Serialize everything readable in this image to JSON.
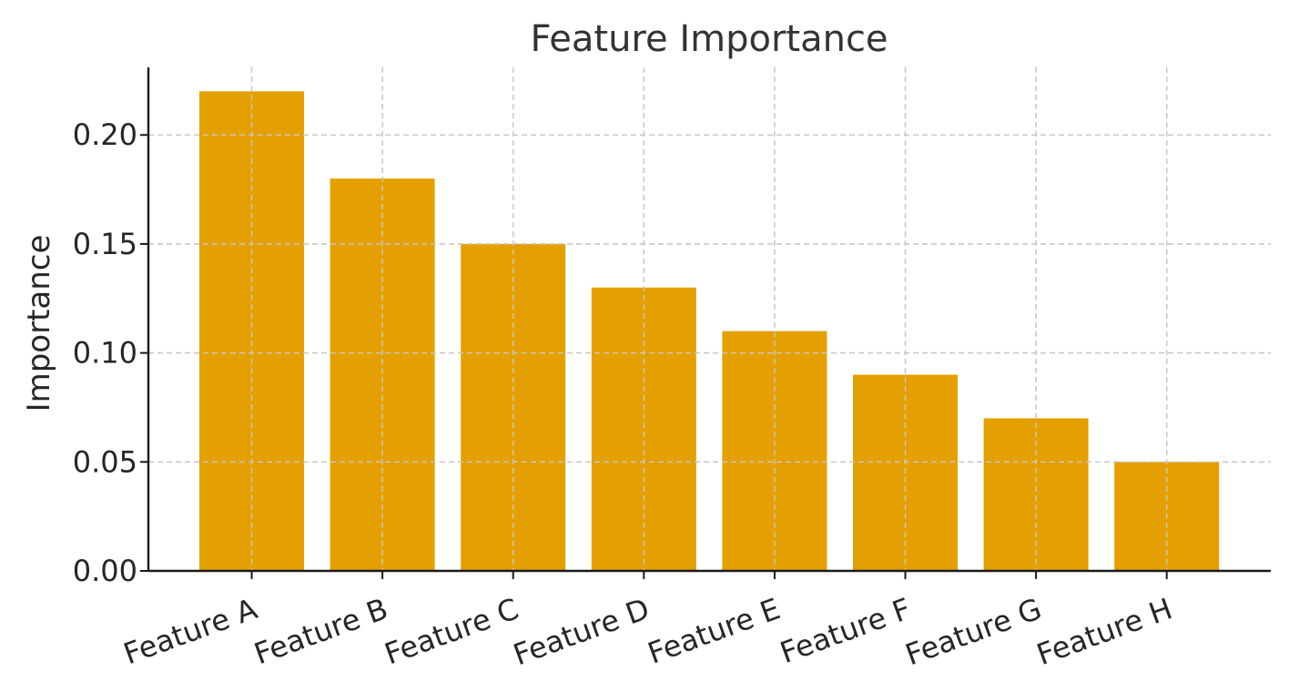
{
  "chart_data": {
    "type": "bar",
    "title": "Feature Importance",
    "xlabel": "",
    "ylabel": "Importance",
    "categories": [
      "Feature A",
      "Feature B",
      "Feature C",
      "Feature D",
      "Feature E",
      "Feature F",
      "Feature G",
      "Feature H"
    ],
    "values": [
      0.22,
      0.18,
      0.15,
      0.13,
      0.11,
      0.09,
      0.07,
      0.05
    ],
    "ylim": [
      0,
      0.231
    ],
    "yticks": [
      "0.00",
      "0.05",
      "0.10",
      "0.15",
      "0.20"
    ],
    "grid": true,
    "legend": "none",
    "colors": {
      "bar": "#E3A000",
      "grid": "#c8c8c8",
      "axis": "#1a1a1a"
    }
  }
}
